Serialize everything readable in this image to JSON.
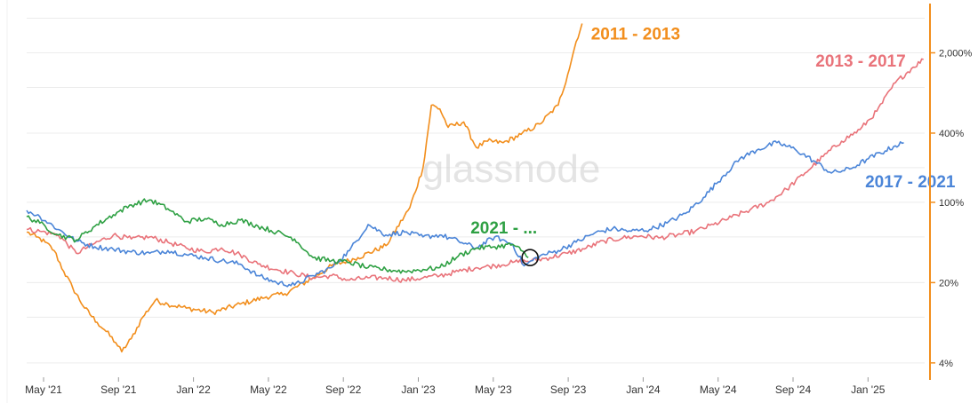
{
  "watermark": "glassnode",
  "chart_data": {
    "type": "line",
    "yscale": "log",
    "ylim": [
      3,
      5000
    ],
    "grid": true,
    "x_ticks": [
      "May '21",
      "Sep '21",
      "Jan '22",
      "May '22",
      "Sep '22",
      "Jan '23",
      "May '23",
      "Sep '23",
      "Jan '24",
      "May '24",
      "Sep '24",
      "Jan '25"
    ],
    "y_ticks": [
      {
        "value": 4,
        "label": "4%"
      },
      {
        "value": 20,
        "label": "20%"
      },
      {
        "value": 100,
        "label": "100%"
      },
      {
        "value": 400,
        "label": "400%"
      },
      {
        "value": 2000,
        "label": "2,000%"
      }
    ],
    "x_range": [
      "2021-04-09",
      "2025-05-20"
    ],
    "series": [
      {
        "name": "2011 - 2013",
        "color": "#f28e1c",
        "points": [
          [
            "2021-04-09",
            55
          ],
          [
            "2021-04-25",
            50
          ],
          [
            "2021-05-10",
            45
          ],
          [
            "2021-05-25",
            38
          ],
          [
            "2021-06-10",
            25
          ],
          [
            "2021-06-25",
            18
          ],
          [
            "2021-07-15",
            12
          ],
          [
            "2021-08-05",
            9
          ],
          [
            "2021-08-20",
            7.5
          ],
          [
            "2021-09-05",
            6
          ],
          [
            "2021-09-15",
            5
          ],
          [
            "2021-10-01",
            6.5
          ],
          [
            "2021-10-20",
            10
          ],
          [
            "2021-11-10",
            14
          ],
          [
            "2021-12-01",
            13
          ],
          [
            "2022-01-01",
            12
          ],
          [
            "2022-02-15",
            11
          ],
          [
            "2022-04-01",
            13
          ],
          [
            "2022-05-15",
            15
          ],
          [
            "2022-06-15",
            16
          ],
          [
            "2022-08-01",
            22
          ],
          [
            "2022-09-01",
            28
          ],
          [
            "2022-10-15",
            33
          ],
          [
            "2022-12-01",
            42
          ],
          [
            "2023-01-10",
            90
          ],
          [
            "2023-02-01",
            200
          ],
          [
            "2023-02-15",
            700
          ],
          [
            "2023-03-01",
            650
          ],
          [
            "2023-03-15",
            450
          ],
          [
            "2023-04-10",
            500
          ],
          [
            "2023-05-01",
            300
          ],
          [
            "2023-05-20",
            340
          ],
          [
            "2023-06-15",
            330
          ],
          [
            "2023-07-15",
            390
          ],
          [
            "2023-08-15",
            480
          ],
          [
            "2023-09-15",
            700
          ],
          [
            "2023-10-01",
            1300
          ],
          [
            "2023-10-15",
            2500
          ],
          [
            "2023-10-25",
            3600
          ]
        ]
      },
      {
        "name": "2013 - 2017",
        "color": "#e9737a",
        "points": [
          [
            "2021-04-09",
            58
          ],
          [
            "2021-05-01",
            56
          ],
          [
            "2021-06-01",
            52
          ],
          [
            "2021-07-01",
            36
          ],
          [
            "2021-08-01",
            44
          ],
          [
            "2021-09-01",
            52
          ],
          [
            "2021-10-01",
            48
          ],
          [
            "2021-11-01",
            50
          ],
          [
            "2021-12-01",
            45
          ],
          [
            "2022-01-01",
            40
          ],
          [
            "2022-02-01",
            37
          ],
          [
            "2022-03-01",
            40
          ],
          [
            "2022-04-01",
            35
          ],
          [
            "2022-05-01",
            29
          ],
          [
            "2022-06-01",
            26
          ],
          [
            "2022-07-01",
            24
          ],
          [
            "2022-08-01",
            22
          ],
          [
            "2022-09-01",
            23
          ],
          [
            "2022-10-01",
            21
          ],
          [
            "2022-11-01",
            22
          ],
          [
            "2022-12-01",
            22
          ],
          [
            "2023-01-01",
            21
          ],
          [
            "2023-02-01",
            22
          ],
          [
            "2023-03-01",
            23
          ],
          [
            "2023-04-01",
            25
          ],
          [
            "2023-05-01",
            27
          ],
          [
            "2023-06-01",
            28
          ],
          [
            "2023-07-01",
            30
          ],
          [
            "2023-08-01",
            31
          ],
          [
            "2023-09-01",
            33
          ],
          [
            "2023-10-01",
            36
          ],
          [
            "2023-11-01",
            40
          ],
          [
            "2023-12-01",
            46
          ],
          [
            "2024-01-01",
            49
          ],
          [
            "2024-02-01",
            51
          ],
          [
            "2024-03-01",
            49
          ],
          [
            "2024-04-01",
            52
          ],
          [
            "2024-05-01",
            56
          ],
          [
            "2024-06-01",
            64
          ],
          [
            "2024-07-01",
            74
          ],
          [
            "2024-08-01",
            86
          ],
          [
            "2024-09-01",
            100
          ],
          [
            "2024-10-01",
            130
          ],
          [
            "2024-11-01",
            180
          ],
          [
            "2024-12-01",
            250
          ],
          [
            "2025-01-01",
            340
          ],
          [
            "2025-02-01",
            430
          ],
          [
            "2025-03-01",
            620
          ],
          [
            "2025-04-01",
            1100
          ],
          [
            "2025-05-01",
            1500
          ],
          [
            "2025-05-18",
            1750
          ]
        ]
      },
      {
        "name": "2017 - 2021",
        "color": "#4b85d8",
        "points": [
          [
            "2021-04-09",
            85
          ],
          [
            "2021-05-01",
            75
          ],
          [
            "2021-06-01",
            58
          ],
          [
            "2021-07-01",
            46
          ],
          [
            "2021-08-01",
            41
          ],
          [
            "2021-09-01",
            39
          ],
          [
            "2021-10-01",
            37
          ],
          [
            "2021-11-01",
            36
          ],
          [
            "2021-12-01",
            38
          ],
          [
            "2022-01-01",
            35
          ],
          [
            "2022-02-01",
            33
          ],
          [
            "2022-03-01",
            31
          ],
          [
            "2022-04-01",
            29
          ],
          [
            "2022-05-01",
            23
          ],
          [
            "2022-06-01",
            20
          ],
          [
            "2022-07-01",
            19
          ],
          [
            "2022-08-01",
            23
          ],
          [
            "2022-09-01",
            27
          ],
          [
            "2022-10-01",
            38
          ],
          [
            "2022-11-01",
            64
          ],
          [
            "2022-12-01",
            52
          ],
          [
            "2023-01-01",
            55
          ],
          [
            "2023-02-01",
            50
          ],
          [
            "2023-03-01",
            52
          ],
          [
            "2023-04-01",
            46
          ],
          [
            "2023-05-01",
            40
          ],
          [
            "2023-06-01",
            50
          ],
          [
            "2023-07-01",
            43
          ],
          [
            "2023-07-20",
            28
          ],
          [
            "2023-08-15",
            34
          ],
          [
            "2023-09-15",
            38
          ],
          [
            "2023-10-15",
            45
          ],
          [
            "2023-11-15",
            54
          ],
          [
            "2023-12-15",
            59
          ],
          [
            "2024-01-15",
            56
          ],
          [
            "2024-02-15",
            58
          ],
          [
            "2024-03-15",
            66
          ],
          [
            "2024-04-15",
            80
          ],
          [
            "2024-05-15",
            110
          ],
          [
            "2024-06-15",
            165
          ],
          [
            "2024-07-15",
            240
          ],
          [
            "2024-08-15",
            290
          ],
          [
            "2024-09-15",
            330
          ],
          [
            "2024-10-15",
            290
          ],
          [
            "2024-11-15",
            230
          ],
          [
            "2024-12-15",
            180
          ],
          [
            "2025-01-15",
            195
          ],
          [
            "2025-02-15",
            240
          ],
          [
            "2025-03-15",
            280
          ],
          [
            "2025-04-01",
            310
          ],
          [
            "2025-04-15",
            330
          ]
        ]
      },
      {
        "name": "2021 - ...",
        "color": "#2ea043",
        "points": [
          [
            "2021-04-09",
            75
          ],
          [
            "2021-05-01",
            66
          ],
          [
            "2021-06-01",
            52
          ],
          [
            "2021-07-01",
            47
          ],
          [
            "2021-08-01",
            62
          ],
          [
            "2021-09-01",
            78
          ],
          [
            "2021-10-01",
            95
          ],
          [
            "2021-11-01",
            105
          ],
          [
            "2021-12-01",
            88
          ],
          [
            "2022-01-01",
            68
          ],
          [
            "2022-02-01",
            72
          ],
          [
            "2022-03-01",
            64
          ],
          [
            "2022-04-01",
            70
          ],
          [
            "2022-05-01",
            62
          ],
          [
            "2022-06-01",
            55
          ],
          [
            "2022-07-01",
            48
          ],
          [
            "2022-08-01",
            33
          ],
          [
            "2022-09-01",
            31
          ],
          [
            "2022-10-01",
            30
          ],
          [
            "2022-11-01",
            27
          ],
          [
            "2022-12-01",
            26
          ],
          [
            "2023-01-01",
            25
          ],
          [
            "2023-02-01",
            26
          ],
          [
            "2023-03-01",
            27
          ],
          [
            "2023-04-01",
            34
          ],
          [
            "2023-05-01",
            40
          ],
          [
            "2023-06-01",
            41
          ],
          [
            "2023-07-01",
            43
          ],
          [
            "2023-07-15",
            38
          ],
          [
            "2023-07-27",
            33
          ]
        ]
      }
    ],
    "labels": [
      {
        "series": "2011 - 2013",
        "text": "2011 - 2013",
        "color": "#f28e1c"
      },
      {
        "series": "2013 - 2017",
        "text": "2013 - 2017",
        "color": "#e9737a"
      },
      {
        "series": "2017 - 2021",
        "text": "2017 - 2021",
        "color": "#4b85d8"
      },
      {
        "series": "2021 - ...",
        "text": "2021 - ...",
        "color": "#2ea043"
      }
    ],
    "marker": {
      "series": "2021 - ...",
      "shape": "circle",
      "at": "2023-07-27"
    },
    "right_axis_color": "#f28e1c"
  }
}
